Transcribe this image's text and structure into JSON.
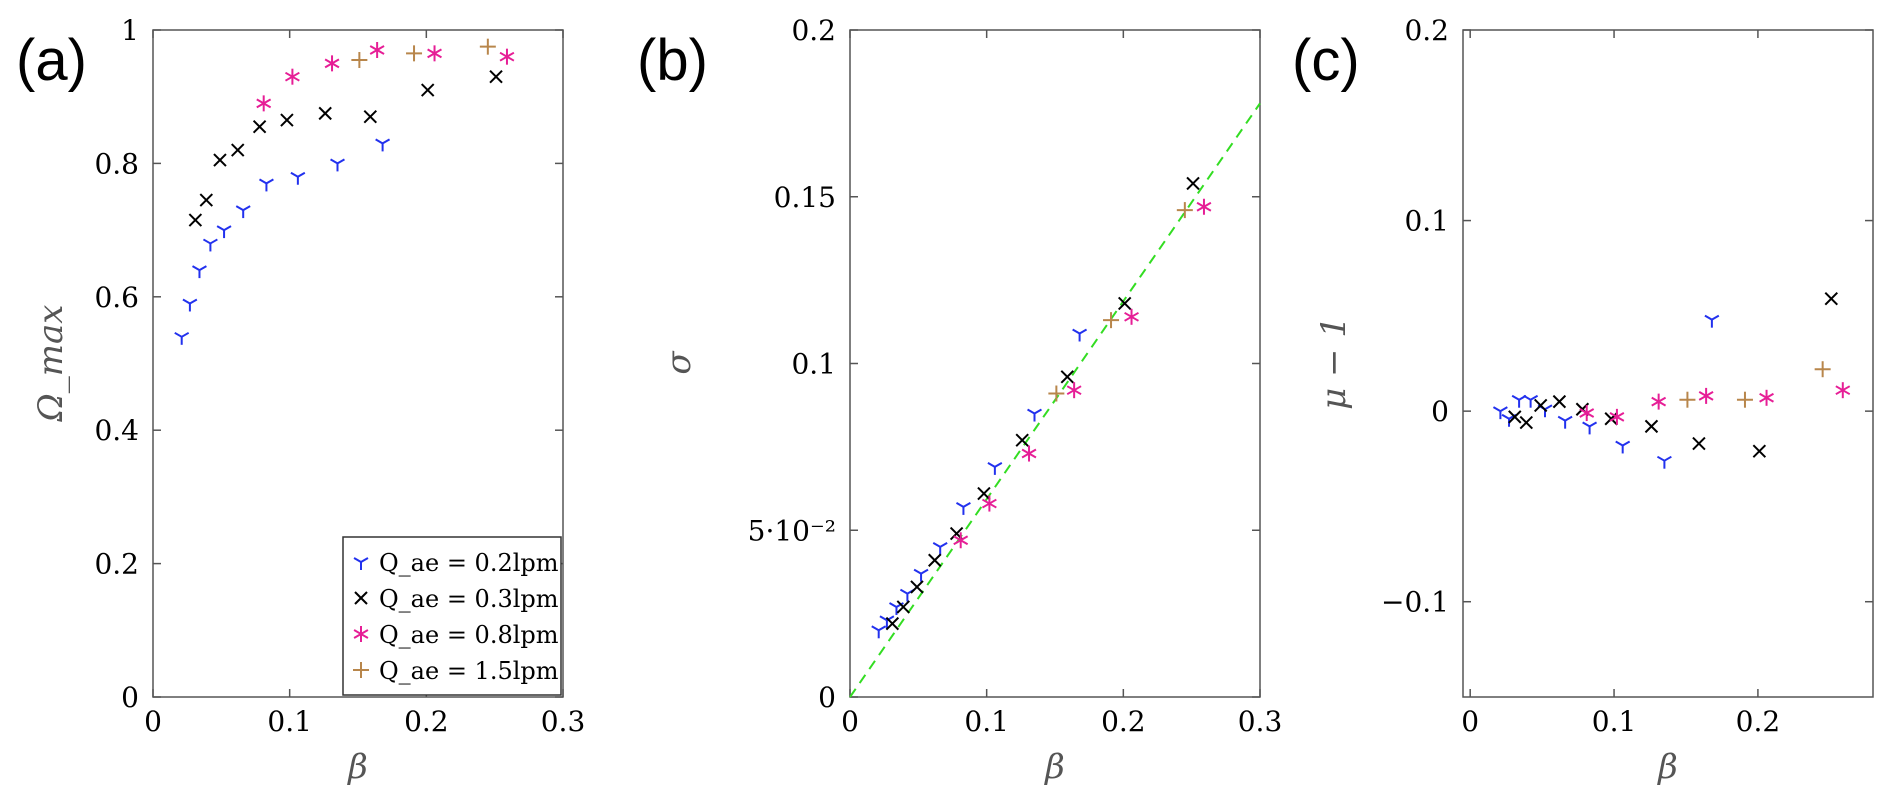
{
  "colors": {
    "s02": "#2231ee",
    "s03": "#000000",
    "s08": "#e61e96",
    "s15": "#b8864b",
    "fit": "#33dd22"
  },
  "chart_data": [
    {
      "type": "scatter",
      "title": "(a)",
      "xlabel": "β",
      "ylabel": "Ω_max",
      "xlim": [
        0,
        0.3
      ],
      "ylim": [
        0,
        1
      ],
      "xticks": [
        "0",
        "0.1",
        "0.2",
        "0.3"
      ],
      "yticks": [
        "0",
        "0.2",
        "0.4",
        "0.6",
        "0.8",
        "1"
      ],
      "grid": false,
      "legend": {
        "position": "bottom-right",
        "entries": [
          "Q_ae = 0.2lpm",
          "Q_ae = 0.3lpm",
          "Q_ae = 0.8lpm",
          "Q_ae = 1.5lpm"
        ]
      },
      "series": [
        {
          "name": "Q_ae = 0.2lpm",
          "marker": "tri",
          "x": [
            0.021,
            0.027,
            0.034,
            0.042,
            0.052,
            0.066,
            0.083,
            0.106,
            0.135,
            0.168
          ],
          "y": [
            0.54,
            0.59,
            0.64,
            0.68,
            0.7,
            0.73,
            0.77,
            0.78,
            0.8,
            0.83
          ]
        },
        {
          "name": "Q_ae = 0.3lpm",
          "marker": "x",
          "x": [
            0.031,
            0.039,
            0.049,
            0.062,
            0.078,
            0.098,
            0.126,
            0.159,
            0.201,
            0.251
          ],
          "y": [
            0.715,
            0.745,
            0.805,
            0.82,
            0.855,
            0.865,
            0.875,
            0.87,
            0.91,
            0.93
          ]
        },
        {
          "name": "Q_ae = 0.8lpm",
          "marker": "star",
          "x": [
            0.081,
            0.102,
            0.131,
            0.164,
            0.206,
            0.259
          ],
          "y": [
            0.89,
            0.93,
            0.95,
            0.97,
            0.965,
            0.96
          ]
        },
        {
          "name": "Q_ae = 1.5lpm",
          "marker": "plus",
          "x": [
            0.151,
            0.191,
            0.245
          ],
          "y": [
            0.955,
            0.965,
            0.975
          ]
        }
      ]
    },
    {
      "type": "scatter",
      "title": "(b)",
      "xlabel": "β",
      "ylabel": "σ",
      "xlim": [
        0,
        0.3
      ],
      "ylim": [
        0,
        0.2
      ],
      "xticks": [
        "0",
        "0.1",
        "0.2",
        "0.3"
      ],
      "yticks": [
        "0",
        "5·10⁻²",
        "0.1",
        "0.15",
        "0.2"
      ],
      "grid": false,
      "fit_line": {
        "style": "dashed",
        "x": [
          0,
          0.3
        ],
        "y": [
          0,
          0.178
        ]
      },
      "series": [
        {
          "name": "Q_ae = 0.2lpm",
          "marker": "tri",
          "x": [
            0.021,
            0.027,
            0.034,
            0.042,
            0.052,
            0.066,
            0.083,
            0.106,
            0.135,
            0.168
          ],
          "y": [
            0.02,
            0.023,
            0.027,
            0.031,
            0.037,
            0.045,
            0.057,
            0.069,
            0.085,
            0.109
          ]
        },
        {
          "name": "Q_ae = 0.3lpm",
          "marker": "x",
          "x": [
            0.031,
            0.039,
            0.049,
            0.062,
            0.078,
            0.098,
            0.126,
            0.159,
            0.201,
            0.251
          ],
          "y": [
            0.022,
            0.027,
            0.033,
            0.041,
            0.049,
            0.061,
            0.077,
            0.096,
            0.118,
            0.154
          ]
        },
        {
          "name": "Q_ae = 0.8lpm",
          "marker": "star",
          "x": [
            0.081,
            0.102,
            0.131,
            0.164,
            0.206,
            0.259
          ],
          "y": [
            0.047,
            0.058,
            0.073,
            0.092,
            0.114,
            0.147
          ]
        },
        {
          "name": "Q_ae = 1.5lpm",
          "marker": "plus",
          "x": [
            0.151,
            0.191,
            0.245
          ],
          "y": [
            0.091,
            0.113,
            0.146
          ]
        }
      ]
    },
    {
      "type": "scatter",
      "title": "(c)",
      "xlabel": "β",
      "ylabel": "μ − 1",
      "xlim": [
        -0.005,
        0.28
      ],
      "ylim": [
        -0.15,
        0.2
      ],
      "xticks": [
        "0",
        "0.1",
        "0.2"
      ],
      "yticks": [
        "−0.1",
        "0",
        "0.1",
        "0.2"
      ],
      "grid": false,
      "series": [
        {
          "name": "Q_ae = 0.2lpm",
          "marker": "tri",
          "x": [
            0.021,
            0.027,
            0.034,
            0.042,
            0.052,
            0.066,
            0.083,
            0.106,
            0.135,
            0.168
          ],
          "y": [
            0.0,
            -0.004,
            0.006,
            0.006,
            0.001,
            -0.005,
            -0.008,
            -0.018,
            -0.026,
            0.048
          ]
        },
        {
          "name": "Q_ae = 0.3lpm",
          "marker": "x",
          "x": [
            0.031,
            0.039,
            0.049,
            0.062,
            0.078,
            0.098,
            0.126,
            0.159,
            0.201,
            0.251
          ],
          "y": [
            -0.003,
            -0.006,
            0.003,
            0.005,
            0.001,
            -0.004,
            -0.008,
            -0.017,
            -0.021,
            0.059
          ]
        },
        {
          "name": "Q_ae = 0.8lpm",
          "marker": "star",
          "x": [
            0.081,
            0.102,
            0.131,
            0.164,
            0.206,
            0.259
          ],
          "y": [
            -0.001,
            -0.003,
            0.005,
            0.008,
            0.007,
            0.011
          ]
        },
        {
          "name": "Q_ae = 1.5lpm",
          "marker": "plus",
          "x": [
            0.151,
            0.191,
            0.245
          ],
          "y": [
            0.006,
            0.006,
            0.022
          ]
        }
      ]
    }
  ]
}
